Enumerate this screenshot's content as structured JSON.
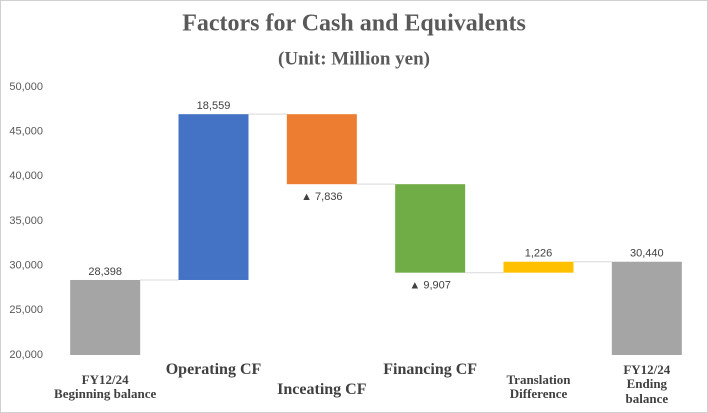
{
  "chart_data": {
    "type": "waterfall",
    "title": "Factors for Cash and Equivalents",
    "subtitle": "(Unit: Million yen)",
    "categories": [
      "FY12/24\nBeginning balance",
      "Operating CF",
      "Inceating CF",
      "Financing CF",
      "Translation\nDifference",
      "FY12/24\nEnding balance"
    ],
    "measure": [
      "absolute",
      "relative",
      "relative",
      "relative",
      "relative",
      "total"
    ],
    "values": [
      28398,
      18559,
      -7836,
      -9907,
      1226,
      30440
    ],
    "value_labels": [
      "28,398",
      "18,559",
      "▲ 7,836",
      "▲ 9,907",
      "1,226",
      "30,440"
    ],
    "colors": [
      "#a5a5a5",
      "#4472c4",
      "#ed7d31",
      "#70ad47",
      "#ffc000",
      "#a5a5a5"
    ],
    "ylim": [
      20000,
      50000
    ],
    "yticks": [
      {
        "value": 20000,
        "label": "20,000"
      },
      {
        "value": 25000,
        "label": "25,000"
      },
      {
        "value": 30000,
        "label": "30,000"
      },
      {
        "value": 35000,
        "label": "35,000"
      },
      {
        "value": 40000,
        "label": "40,000"
      },
      {
        "value": 45000,
        "label": "45,000"
      },
      {
        "value": 50000,
        "label": "50,000"
      }
    ],
    "grid": false
  }
}
